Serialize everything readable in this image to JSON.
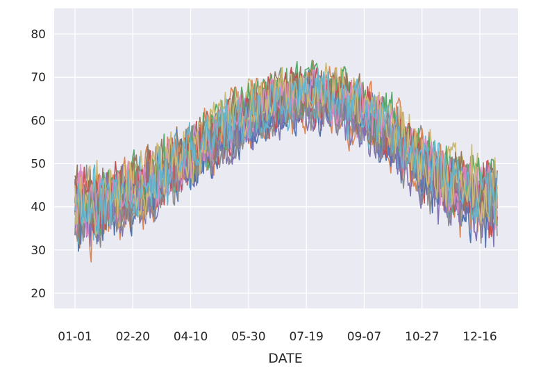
{
  "chart_data": {
    "type": "line",
    "title": "",
    "xlabel": "DATE",
    "ylabel": "",
    "x_ticks": [
      "01-01",
      "02-20",
      "04-10",
      "05-30",
      "07-19",
      "09-07",
      "10-27",
      "12-16"
    ],
    "x_tick_days": [
      1,
      51,
      101,
      151,
      201,
      251,
      301,
      351
    ],
    "x_range_days": [
      1,
      366
    ],
    "y_ticks": [
      20,
      30,
      40,
      50,
      60,
      70,
      80
    ],
    "ylim": [
      15.5,
      86.5
    ],
    "grid": true,
    "legend": "none",
    "background_color": "#eaeaf2",
    "grid_color": "#ffffff",
    "series_count": 20,
    "series_colors": [
      "#4c72b0",
      "#dd8452",
      "#55a868",
      "#c44e52",
      "#8172b3",
      "#937860",
      "#da8bc3",
      "#8c8c8c",
      "#ccb974",
      "#64b5cd"
    ],
    "series_shape": {
      "baseline_day": 208,
      "baseline_peak": 66,
      "baseline_low_start": 40,
      "baseline_low_end": 42,
      "spread": 8
    }
  }
}
